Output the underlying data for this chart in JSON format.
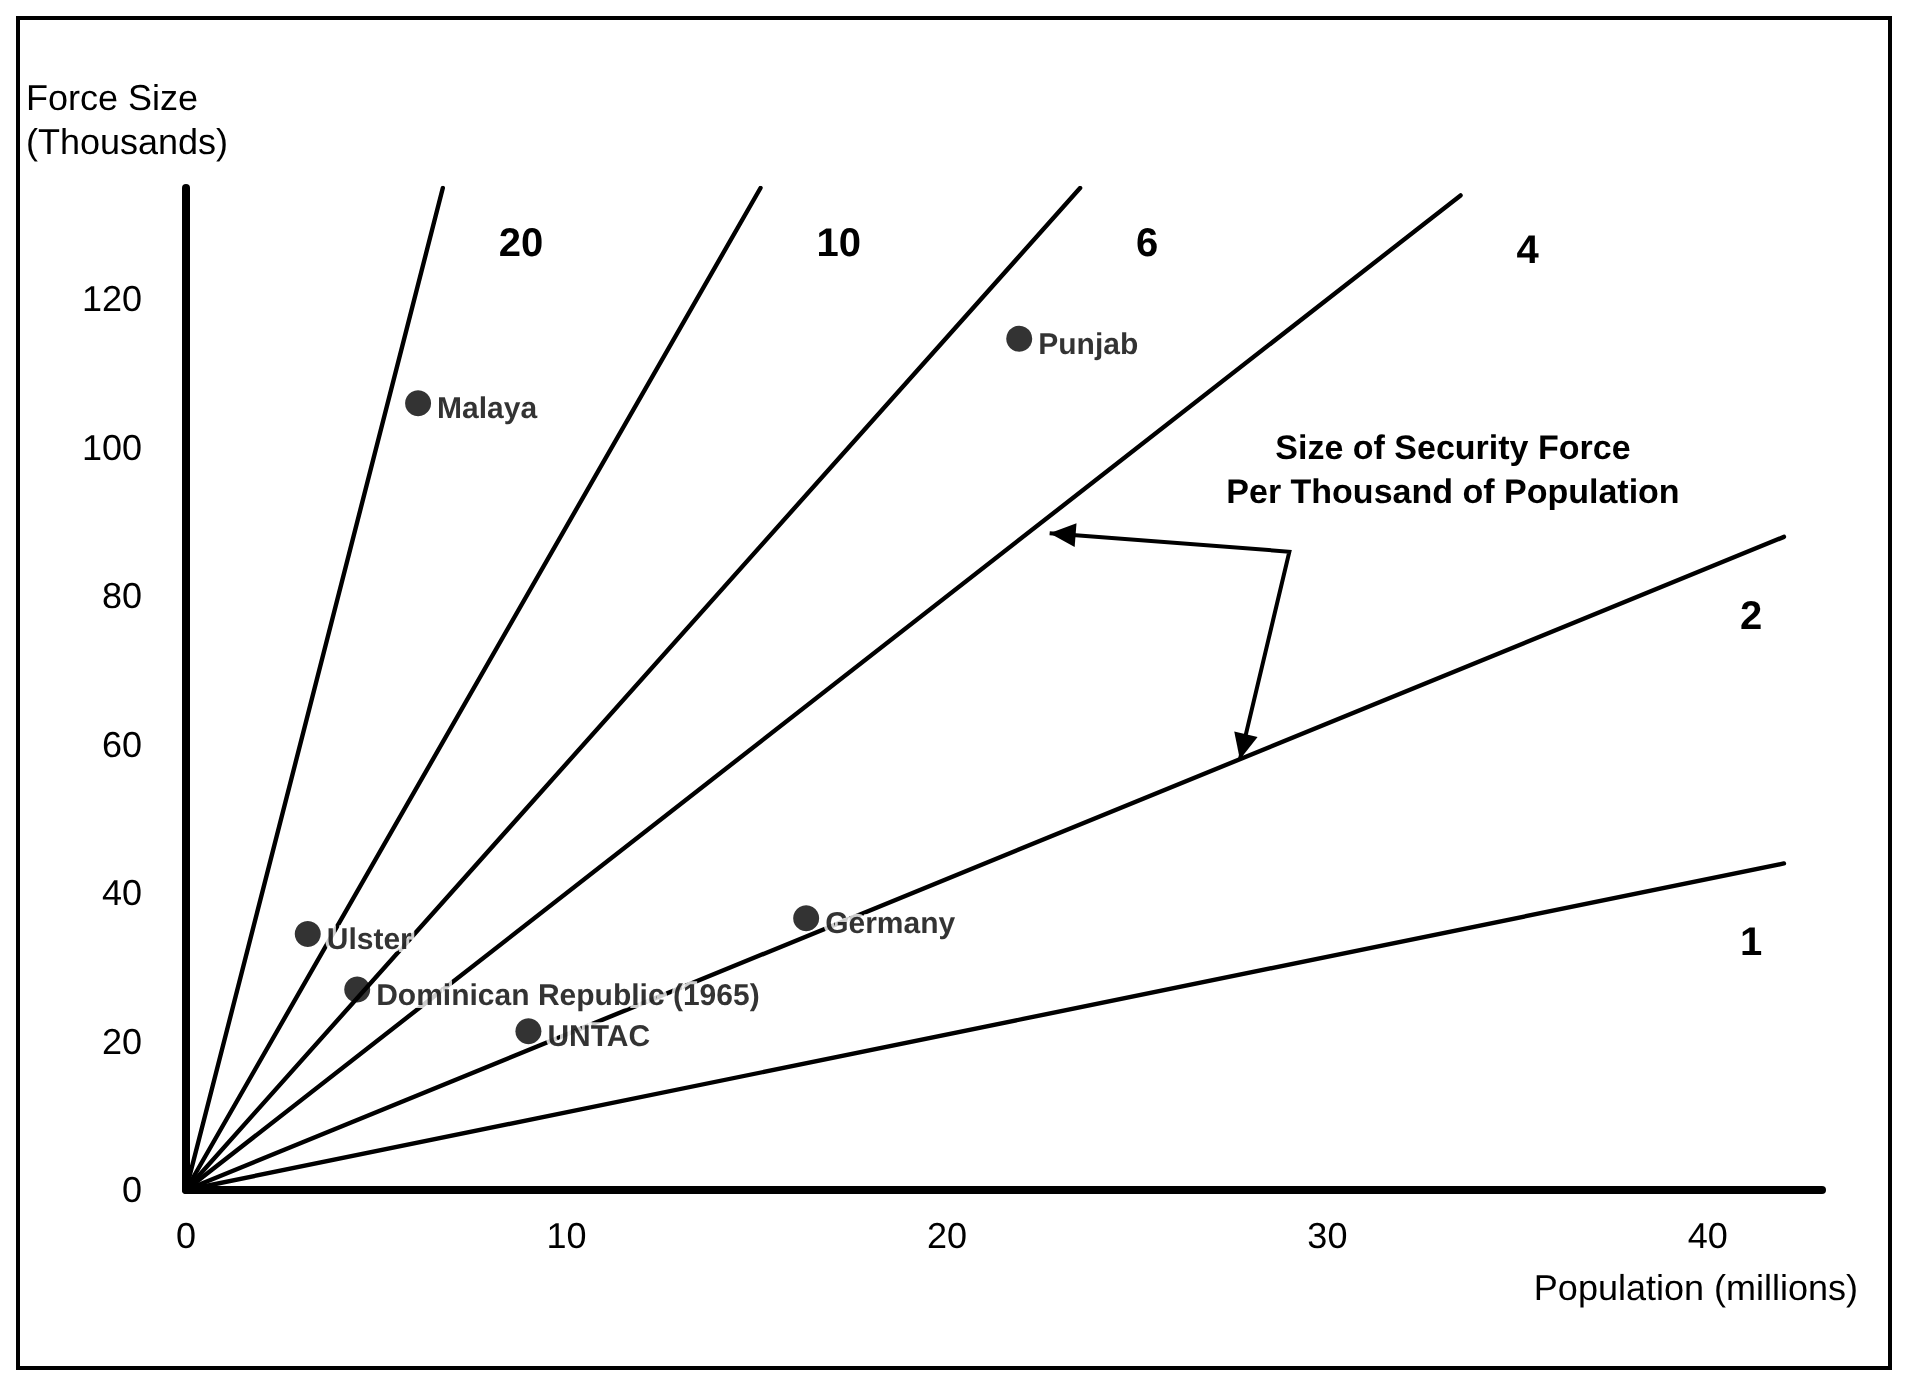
{
  "chart_data": {
    "type": "scatter",
    "xlabel": "Population (millions)",
    "ylabel": "Force Size\n(Thousands)",
    "xlim": [
      0,
      43
    ],
    "ylim": [
      0,
      135
    ],
    "xticks": [
      0,
      10,
      20,
      30,
      40
    ],
    "yticks": [
      0,
      20,
      40,
      60,
      80,
      100,
      120
    ],
    "grid": false,
    "legend": false,
    "series": [
      {
        "name": "Malaya",
        "color": "#000000",
        "marker": "circle",
        "x": [
          6.1
        ],
        "values": [
          106
        ]
      },
      {
        "name": "Punjab",
        "color": "#000000",
        "marker": "circle",
        "x": [
          21.9
        ],
        "values": [
          114.7
        ]
      },
      {
        "name": "Ulster",
        "color": "#000000",
        "marker": "circle",
        "x": [
          3.2
        ],
        "values": [
          34.5
        ]
      },
      {
        "name": "Dominican Republic (1965)",
        "color": "#000000",
        "marker": "circle",
        "x": [
          4.5
        ],
        "values": [
          27
        ]
      },
      {
        "name": "UNTAC",
        "color": "#000000",
        "marker": "circle",
        "x": [
          9.0
        ],
        "values": [
          21.4
        ]
      },
      {
        "name": "Germany",
        "color": "#000000",
        "marker": "circle",
        "x": [
          16.3
        ],
        "values": [
          36.6
        ]
      },
      {
        "name": "20",
        "type": "line",
        "marker": "none",
        "color": "#000000",
        "x": [
          0,
          6.75
        ],
        "values": [
          0,
          135
        ]
      },
      {
        "name": "10",
        "type": "line",
        "marker": "none",
        "color": "#000000",
        "x": [
          0,
          15.1
        ],
        "values": [
          0,
          135
        ]
      },
      {
        "name": "6",
        "type": "line",
        "marker": "none",
        "color": "#000000",
        "x": [
          0,
          23.5
        ],
        "values": [
          0,
          135
        ]
      },
      {
        "name": "4",
        "type": "line",
        "marker": "none",
        "color": "#000000",
        "x": [
          0,
          33.5
        ],
        "values": [
          0,
          134
        ]
      },
      {
        "name": "2",
        "type": "line",
        "marker": "none",
        "color": "#000000",
        "x": [
          0,
          42
        ],
        "values": [
          0,
          88
        ]
      },
      {
        "name": "1",
        "type": "line",
        "marker": "none",
        "color": "#000000",
        "x": [
          0,
          42
        ],
        "values": [
          0,
          44
        ]
      }
    ],
    "annotations": [
      "Size of Security Force\nPer Thousand of Population"
    ]
  }
}
